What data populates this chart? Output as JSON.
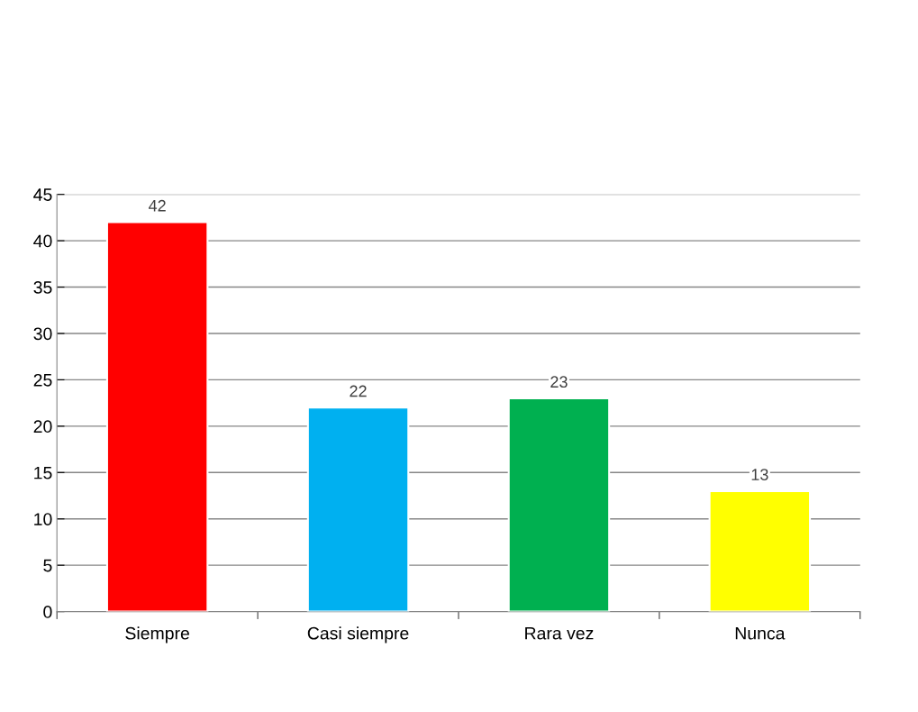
{
  "chart_data": {
    "type": "bar",
    "categories": [
      "Siempre",
      "Casi siempre",
      "Rara vez",
      "Nunca"
    ],
    "values": [
      42,
      22,
      23,
      13
    ],
    "colors": [
      "#ff0000",
      "#00b0f0",
      "#00b050",
      "#ffff00"
    ],
    "ylim": [
      0,
      45
    ],
    "yticks": [
      0,
      5,
      10,
      15,
      20,
      25,
      30,
      35,
      40,
      45
    ],
    "grid": "y",
    "data_labels": true
  }
}
